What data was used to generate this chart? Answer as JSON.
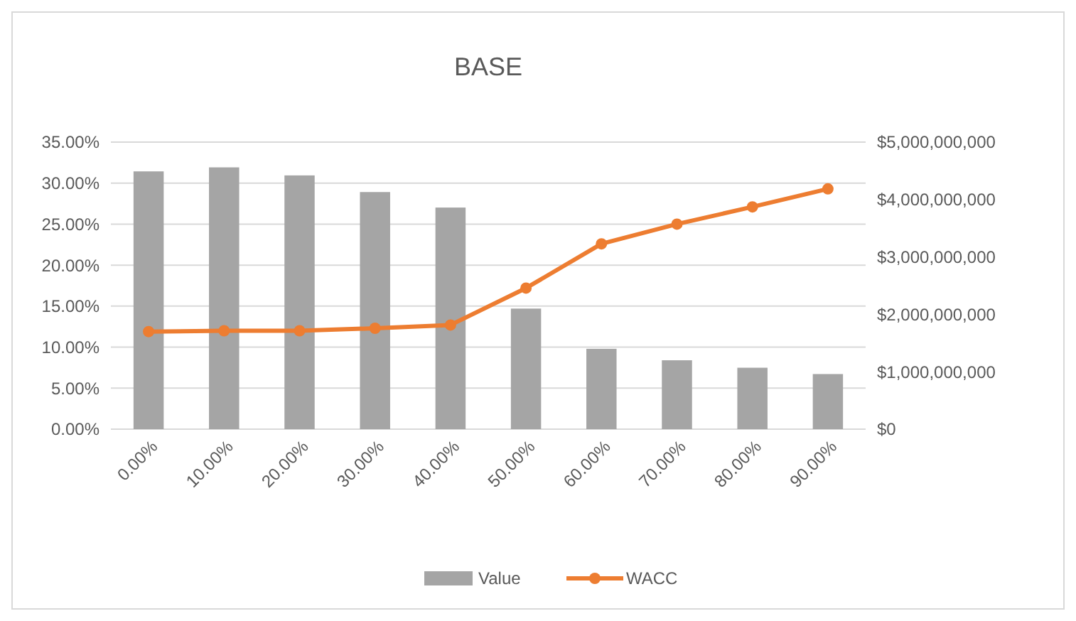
{
  "chart_data": {
    "type": "bar",
    "title": "BASE",
    "categories": [
      "0.00%",
      "10.00%",
      "20.00%",
      "30.00%",
      "40.00%",
      "50.00%",
      "60.00%",
      "70.00%",
      "80.00%",
      "90.00%"
    ],
    "series": [
      {
        "name": "Value",
        "axis": "y2",
        "color": "#a5a5a5",
        "values": [
          4490000000,
          4560000000,
          4420000000,
          4130000000,
          3860000000,
          2100000000,
          1400000000,
          1200000000,
          1070000000,
          960000000
        ]
      },
      {
        "name": "WACC",
        "type": "line",
        "axis": "y",
        "color": "#ed7d31",
        "marker": "circle",
        "values": [
          11.9,
          12.0,
          12.0,
          12.3,
          12.7,
          17.2,
          22.6,
          25.0,
          27.1,
          29.3
        ]
      }
    ],
    "ylim": [
      0,
      35
    ],
    "yticks": [
      {
        "value": 0,
        "label": "0.00%"
      },
      {
        "value": 5,
        "label": "5.00%"
      },
      {
        "value": 10,
        "label": "10.00%"
      },
      {
        "value": 15,
        "label": "15.00%"
      },
      {
        "value": 20,
        "label": "20.00%"
      },
      {
        "value": 25,
        "label": "25.00%"
      },
      {
        "value": 30,
        "label": "30.00%"
      },
      {
        "value": 35,
        "label": "35.00%"
      }
    ],
    "y2lim": [
      0,
      5000000000
    ],
    "y2ticks": [
      {
        "value": 0,
        "label": "$0"
      },
      {
        "value": 1000000000,
        "label": "$1,000,000,000"
      },
      {
        "value": 2000000000,
        "label": "$2,000,000,000"
      },
      {
        "value": 3000000000,
        "label": "$3,000,000,000"
      },
      {
        "value": 4000000000,
        "label": "$4,000,000,000"
      },
      {
        "value": 5000000000,
        "label": "$5,000,000,000"
      }
    ],
    "grid": "y",
    "legend": "bottom"
  }
}
